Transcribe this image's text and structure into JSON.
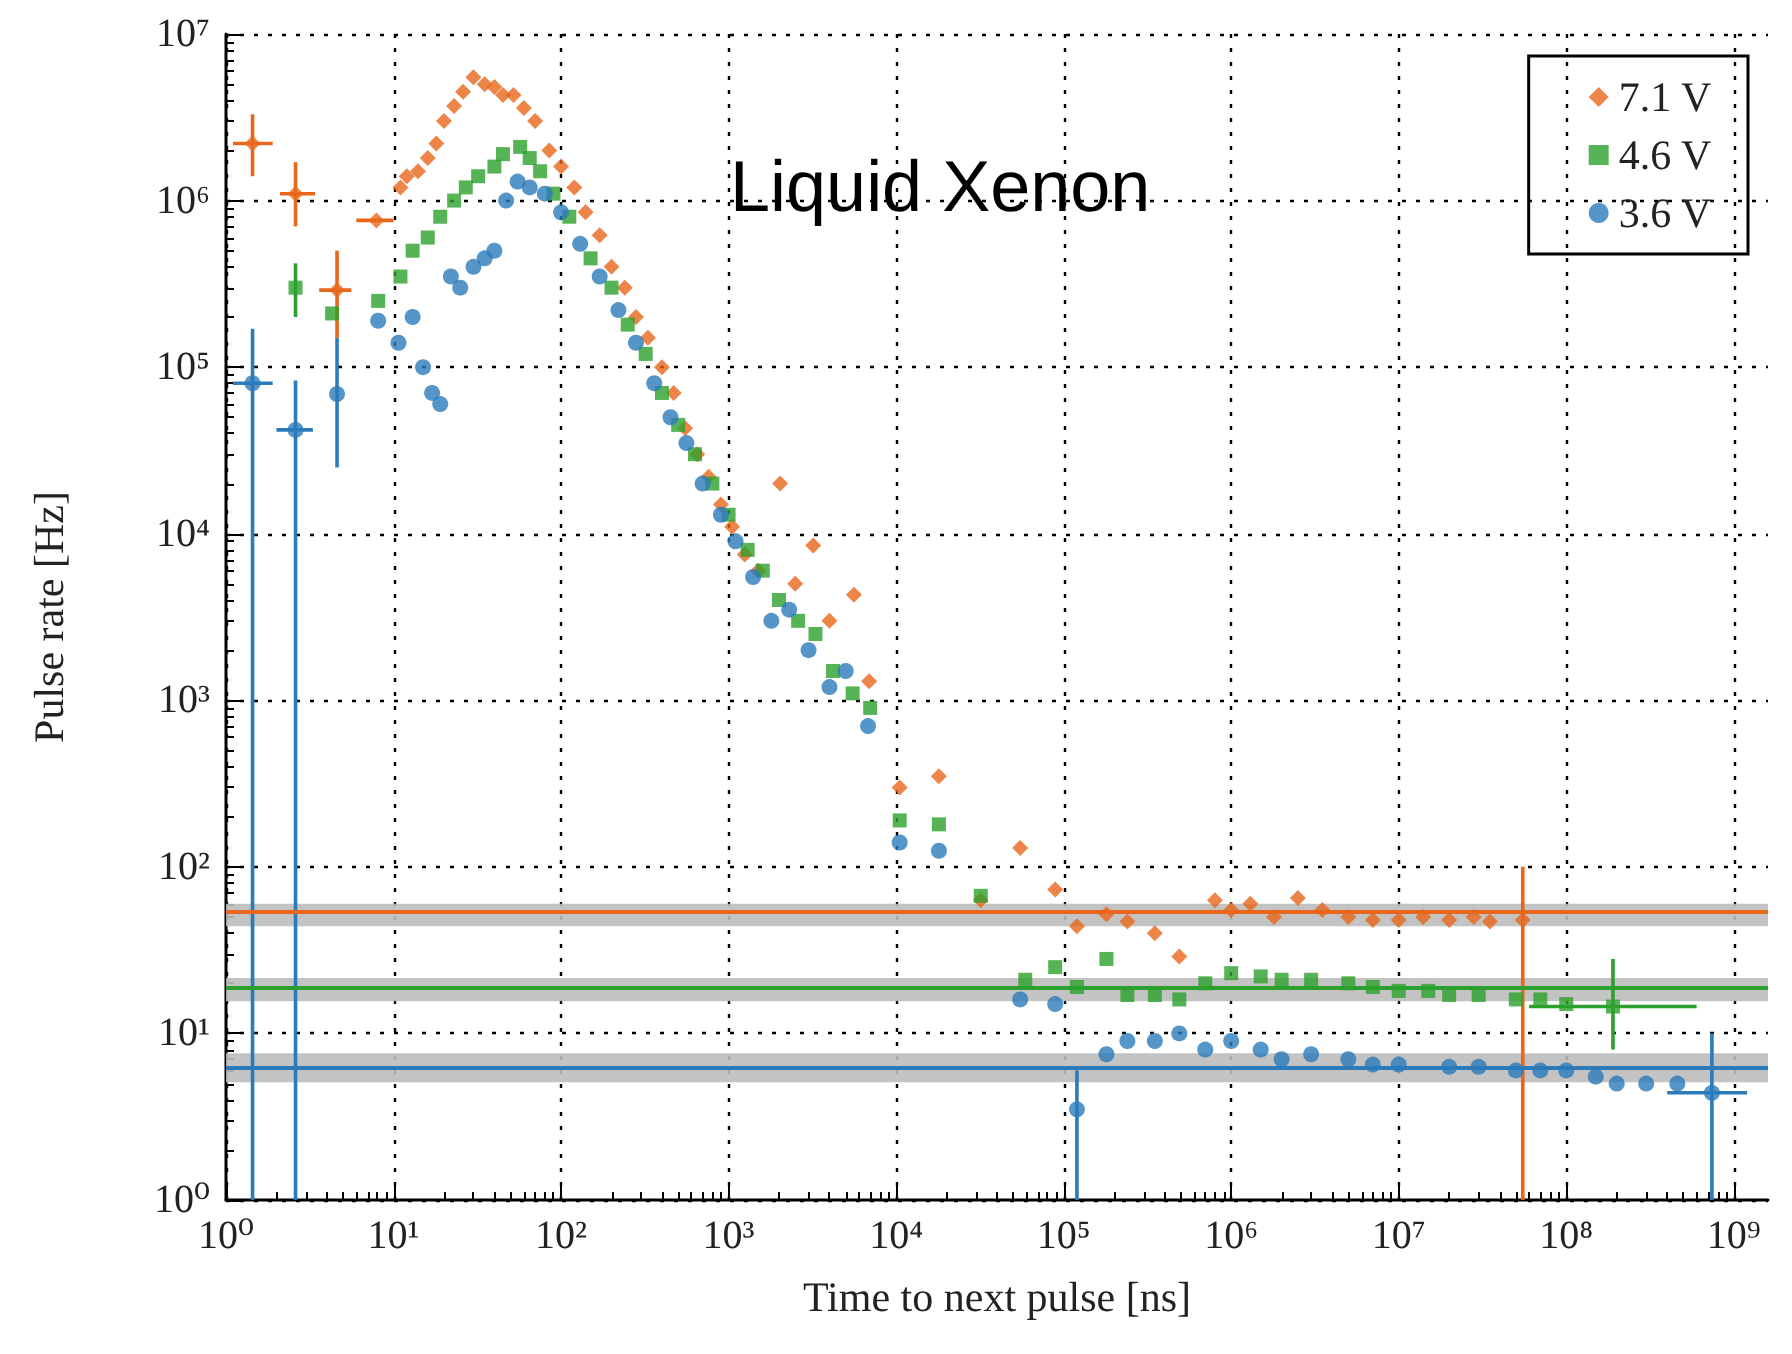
{
  "chart_data": {
    "type": "scatter",
    "title": "Liquid Xenon",
    "xlabel": "Time to next pulse [ns]",
    "ylabel": "Pulse rate [Hz]",
    "log": "xy",
    "grid": true,
    "legend": "top right",
    "xlim": [
      1,
      1600000000
    ],
    "ylim": [
      1,
      10000000
    ],
    "xticks": [
      {
        "value": 1,
        "label": "10⁰"
      },
      {
        "value": 10,
        "label": "10¹"
      },
      {
        "value": 100,
        "label": "10²"
      },
      {
        "value": 1000,
        "label": "10³"
      },
      {
        "value": 10000,
        "label": "10⁴"
      },
      {
        "value": 100000,
        "label": "10⁵"
      },
      {
        "value": 1000000,
        "label": "10⁶"
      },
      {
        "value": 10000000,
        "label": "10⁷"
      },
      {
        "value": 100000000,
        "label": "10⁸"
      },
      {
        "value": 1000000000,
        "label": "10⁹"
      }
    ],
    "yticks": [
      {
        "value": 1,
        "label": "10⁰"
      },
      {
        "value": 10,
        "label": "10¹"
      },
      {
        "value": 100,
        "label": "10²"
      },
      {
        "value": 1000,
        "label": "10³"
      },
      {
        "value": 10000,
        "label": "10⁴"
      },
      {
        "value": 100000,
        "label": "10⁵"
      },
      {
        "value": 1000000,
        "label": "10⁶"
      },
      {
        "value": 10000000,
        "label": "10⁷"
      }
    ],
    "series": [
      {
        "name": "7.1 V",
        "color": "#e8671c",
        "marker": "diamond",
        "x": [
          1.44,
          2.6,
          4.6,
          7.9,
          11,
          12,
          14,
          16,
          18,
          20,
          23,
          26,
          30,
          35,
          40,
          45,
          52,
          60,
          70,
          85,
          100,
          120,
          140,
          170,
          200,
          240,
          280,
          330,
          400,
          470,
          550,
          650,
          760,
          900,
          1050,
          1250,
          1500,
          2030,
          2500,
          3200,
          4000,
          5600,
          6900,
          10500,
          18000,
          32000,
          55000,
          89000,
          120000,
          180000,
          240000,
          350000,
          490000,
          800000,
          1000000,
          1300000,
          1800000,
          2500000,
          3500000,
          5000000,
          7000000,
          10000000,
          14000000,
          20000000,
          28000000,
          35000000,
          55000000
        ],
        "values": [
          2200000,
          1100000,
          290000,
          760000,
          1200000,
          1400000,
          1500000,
          1800000,
          2200000,
          3000000,
          3700000,
          4500000,
          5500000,
          5000000,
          4800000,
          4300000,
          4300000,
          3600000,
          3000000,
          2000000,
          1600000,
          1200000,
          850000,
          620000,
          400000,
          300000,
          200000,
          150000,
          100000,
          70000,
          43000,
          30000,
          22000,
          15000,
          11000,
          7500,
          6000,
          20000,
          5000,
          8500,
          3000,
          4300,
          1300,
          300,
          350,
          63,
          130,
          73,
          44,
          52,
          47,
          40,
          29,
          63,
          55,
          60,
          50,
          65,
          55,
          50,
          48,
          48,
          50,
          48,
          50,
          47,
          48
        ],
        "errors": [
          [
            1400000,
            3300000
          ],
          [
            700000,
            1700000
          ],
          [
            150000,
            500000
          ],
          null,
          null,
          null,
          null,
          null,
          null,
          null,
          null,
          null,
          null,
          null,
          null,
          null,
          null,
          null,
          null,
          null,
          null,
          null,
          null,
          null,
          null,
          null,
          null,
          null,
          null,
          null,
          null,
          null,
          null,
          null,
          null,
          null,
          null,
          null,
          null,
          null,
          null,
          null,
          null,
          null,
          null,
          null,
          null,
          null,
          null,
          null,
          null,
          null,
          null,
          null,
          null,
          null,
          null,
          null,
          null,
          null,
          null,
          null,
          null,
          null,
          null,
          null,
          [
            1,
            100
          ]
        ],
        "xerrors": [
          [
            1.1,
            1.9
          ],
          [
            2.1,
            3.4
          ],
          [
            3.6,
            5.6
          ],
          [
            6,
            10
          ],
          null,
          null,
          null,
          null,
          null,
          null,
          null,
          null,
          null,
          null,
          null,
          null,
          null,
          null,
          null,
          null,
          null,
          null,
          null,
          null,
          null,
          null,
          null,
          null,
          null,
          null,
          null,
          null,
          null,
          null,
          null,
          null,
          null,
          null,
          null,
          null,
          null,
          null,
          null,
          null,
          null,
          null,
          null,
          null,
          null,
          null,
          null,
          null,
          null,
          null,
          null,
          null,
          null,
          null,
          null,
          null,
          null,
          null,
          null,
          null,
          null,
          null,
          null
        ]
      },
      {
        "name": "4.6 V",
        "color": "#2ca02c",
        "marker": "square",
        "x": [
          2.6,
          4.3,
          8.1,
          11,
          13,
          16,
          19,
          23,
          27,
          32,
          40,
          45,
          57,
          65,
          75,
          90,
          112,
          150,
          200,
          250,
          320,
          400,
          500,
          630,
          800,
          1000,
          1300,
          1600,
          2000,
          2600,
          3300,
          4200,
          5500,
          7000,
          10500,
          18000,
          32000,
          59000,
          89000,
          120000,
          180000,
          240000,
          350000,
          490000,
          700000,
          1000000,
          1500000,
          2000000,
          3000000,
          5000000,
          7000000,
          10000000,
          15000000,
          20000000,
          30000000,
          50000000,
          70000000,
          100000000,
          190000000
        ],
        "values": [
          300000,
          210000,
          250000,
          350000,
          500000,
          600000,
          800000,
          1000000,
          1200000,
          1400000,
          1600000,
          1900000,
          2100000,
          1800000,
          1500000,
          1100000,
          800000,
          450000,
          300000,
          180000,
          120000,
          70000,
          45000,
          30000,
          20000,
          13000,
          8000,
          6000,
          4000,
          3000,
          2500,
          1500,
          1100,
          900,
          190,
          180,
          67,
          21,
          25,
          19,
          28,
          17,
          17,
          16,
          20,
          23,
          22,
          21,
          21,
          20,
          19,
          18,
          18,
          17,
          17,
          16,
          16,
          15,
          14.5
        ],
        "errors": [
          [
            200000,
            420000
          ],
          null,
          null,
          null,
          null,
          null,
          null,
          null,
          null,
          null,
          null,
          null,
          null,
          null,
          null,
          null,
          null,
          null,
          null,
          null,
          null,
          null,
          null,
          null,
          null,
          null,
          null,
          null,
          null,
          null,
          null,
          null,
          null,
          null,
          null,
          null,
          null,
          null,
          null,
          null,
          null,
          null,
          null,
          null,
          null,
          null,
          null,
          null,
          null,
          null,
          null,
          null,
          null,
          null,
          null,
          null,
          null,
          null,
          [
            8,
            28
          ]
        ],
        "xerrors": [
          null,
          null,
          null,
          null,
          null,
          null,
          null,
          null,
          null,
          null,
          null,
          null,
          null,
          null,
          null,
          null,
          null,
          null,
          null,
          null,
          null,
          null,
          null,
          null,
          null,
          null,
          null,
          null,
          null,
          null,
          null,
          null,
          null,
          null,
          null,
          null,
          null,
          null,
          null,
          null,
          null,
          null,
          null,
          null,
          null,
          null,
          null,
          null,
          null,
          null,
          null,
          null,
          null,
          null,
          null,
          null,
          null,
          null,
          [
            60000000,
            600000000
          ]
        ]
      },
      {
        "name": "3.6 V",
        "color": "#2b7bba",
        "marker": "circle",
        "x": [
          1.44,
          2.6,
          4.6,
          8.1,
          10.7,
          13,
          15,
          17,
          19,
          22,
          25,
          30,
          35,
          40,
          47,
          55,
          65,
          80,
          100,
          130,
          170,
          220,
          280,
          360,
          450,
          560,
          700,
          900,
          1100,
          1400,
          1800,
          2300,
          3000,
          4000,
          5000,
          6800,
          10500,
          18000,
          55000,
          89000,
          120000,
          180000,
          240000,
          350000,
          490000,
          700000,
          1000000,
          1500000,
          2000000,
          3000000,
          5000000,
          7000000,
          10000000,
          20000000,
          30000000,
          50000000,
          70000000,
          100000000,
          150000000,
          200000000,
          300000000,
          460000000,
          740000000
        ],
        "values": [
          80000,
          42000,
          69000,
          190000,
          140000,
          200000,
          100000,
          70000,
          60000,
          350000,
          300000,
          400000,
          450000,
          500000,
          1000000,
          1300000,
          1200000,
          1100000,
          850000,
          550000,
          350000,
          220000,
          140000,
          80000,
          50000,
          35000,
          20000,
          13000,
          9000,
          5500,
          3000,
          3500,
          2000,
          1200,
          1500,
          700,
          140,
          125,
          16,
          15,
          3.5,
          7.5,
          9,
          9,
          10,
          8,
          9,
          8,
          7,
          7.5,
          7,
          6.5,
          6.5,
          6.3,
          6.3,
          6,
          6,
          6,
          5.5,
          5,
          5,
          5,
          4.4
        ],
        "errors": [
          [
            1,
            170000
          ],
          [
            1,
            83000
          ],
          [
            25000,
            150000
          ],
          null,
          null,
          null,
          null,
          null,
          null,
          null,
          null,
          null,
          null,
          null,
          null,
          null,
          null,
          null,
          null,
          null,
          null,
          null,
          null,
          null,
          null,
          null,
          null,
          null,
          null,
          null,
          null,
          null,
          null,
          null,
          null,
          null,
          null,
          null,
          null,
          null,
          [
            1,
            6
          ],
          null,
          null,
          null,
          null,
          null,
          null,
          null,
          null,
          null,
          null,
          null,
          null,
          null,
          null,
          null,
          null,
          null,
          null,
          null,
          null,
          null,
          [
            1,
            10
          ]
        ],
        "xerrors": [
          [
            1.1,
            1.9
          ],
          [
            2,
            3.3
          ],
          null,
          null,
          null,
          null,
          null,
          null,
          null,
          null,
          null,
          null,
          null,
          null,
          null,
          null,
          null,
          null,
          null,
          null,
          null,
          null,
          null,
          null,
          null,
          null,
          null,
          null,
          null,
          null,
          null,
          null,
          null,
          null,
          null,
          null,
          null,
          null,
          null,
          null,
          null,
          null,
          null,
          null,
          null,
          null,
          null,
          null,
          null,
          null,
          null,
          null,
          null,
          null,
          null,
          null,
          null,
          null,
          null,
          null,
          null,
          null,
          [
            400000000,
            1200000000
          ]
        ]
      }
    ],
    "ref_lines": [
      {
        "axis": "y",
        "value": 54,
        "label": null,
        "color": "#e8671c"
      },
      {
        "axis": "y",
        "value": 18.7,
        "label": null,
        "color": "#2ca02c"
      },
      {
        "axis": "y",
        "value": 6.3,
        "label": null,
        "color": "#2b7bba"
      }
    ],
    "bands": [
      {
        "axis": "y",
        "from": 44,
        "to": 60,
        "label": null,
        "color": "#bdbdbd"
      },
      {
        "axis": "y",
        "from": 15.6,
        "to": 21.5,
        "label": null,
        "color": "#bdbdbd"
      },
      {
        "axis": "y",
        "from": 5.1,
        "to": 7.6,
        "label": null,
        "color": "#bdbdbd"
      }
    ]
  }
}
